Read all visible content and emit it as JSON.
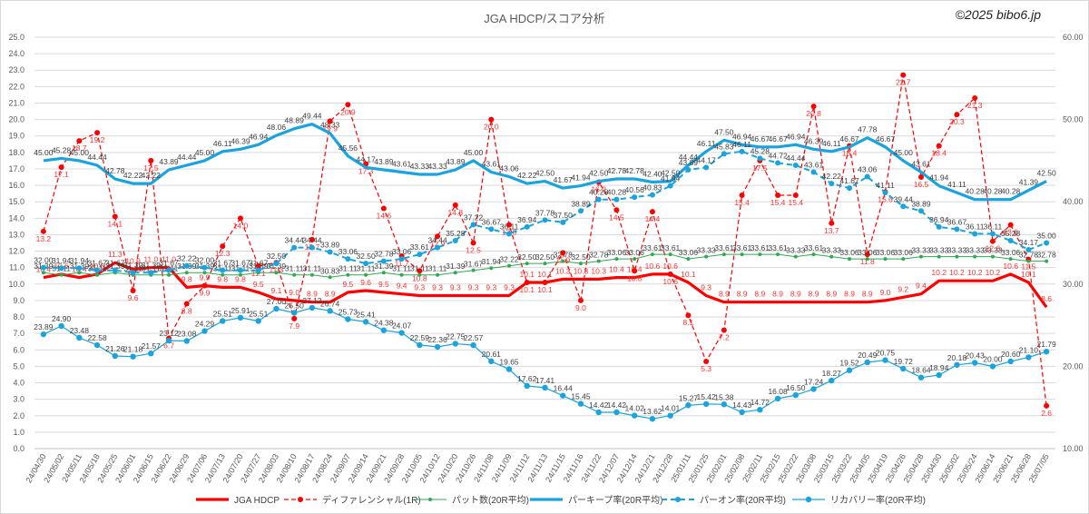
{
  "title": "JGA HDCP/スコア分析",
  "copyright": "©2025 bibo6.jp",
  "colors": {
    "hdcp": "#ff0000",
    "diff": "#ff0000",
    "putt": "#33a852",
    "par": "#1aa3dd",
    "gir": "#1aa3dd",
    "rec": "#1aa3dd",
    "grid": "#d9d9d9",
    "axis_text": "#595959"
  },
  "chart_data": {
    "type": "line",
    "y_left": {
      "min": 0,
      "max": 25,
      "step": 1
    },
    "y_right": {
      "min": 10,
      "max": 60,
      "step": 10
    },
    "grid": true,
    "legend_position": "bottom",
    "categories": [
      "24/04/30",
      "24/05/02",
      "24/05/11",
      "24/05/18",
      "24/05/25",
      "24/06/01",
      "24/06/15",
      "24/06/22",
      "24/06/29",
      "24/07/06",
      "24/07/13",
      "24/07/20",
      "24/07/27",
      "24/08/03",
      "24/08/10",
      "24/08/17",
      "24/08/24",
      "24/09/07",
      "24/09/14",
      "24/09/21",
      "24/09/28",
      "24/10/05",
      "24/10/12",
      "24/10/20",
      "24/10/26",
      "24/11/08",
      "24/11/09",
      "24/11/12",
      "24/11/13",
      "24/11/15",
      "24/11/16",
      "24/11/22",
      "24/12/07",
      "24/12/14",
      "24/12/21",
      "24/12/28",
      "25/01/11",
      "25/01/25",
      "25/02/01",
      "25/02/08",
      "25/02/11",
      "25/02/15",
      "25/02/22",
      "25/03/08",
      "25/03/15",
      "25/03/22",
      "25/04/05",
      "25/04/19",
      "25/04/26",
      "25/04/28",
      "25/04/30",
      "25/05/02",
      "25/05/24",
      "25/06/14",
      "25/06/21",
      "25/06/28",
      "25/07/05"
    ],
    "series": [
      {
        "name": "JGA HDCP",
        "axis": "left",
        "style": "line-thick",
        "values": [
          10.4,
          10.6,
          10.4,
          10.6,
          11.3,
          10.9,
          11.0,
          11.0,
          9.8,
          9.9,
          9.8,
          9.8,
          9.5,
          9.1,
          9.0,
          8.9,
          8.9,
          9.5,
          9.6,
          9.5,
          9.4,
          9.3,
          9.3,
          9.3,
          9.3,
          9.3,
          9.3,
          10.1,
          10.1,
          10.3,
          10.3,
          10.3,
          10.4,
          10.4,
          10.6,
          10.6,
          10.1,
          9.3,
          8.9,
          8.9,
          8.9,
          8.9,
          8.9,
          8.9,
          8.9,
          8.9,
          8.9,
          9.0,
          9.2,
          9.4,
          10.2,
          10.2,
          10.2,
          10.2,
          10.6,
          10.1,
          8.6
        ]
      },
      {
        "name": "ディファレンシャル(1R)",
        "axis": "left",
        "style": "dashed-marker",
        "values": [
          13.2,
          17.1,
          18.7,
          19.2,
          14.1,
          9.6,
          17.5,
          6.7,
          8.8,
          9.9,
          12.3,
          14.0,
          11.1,
          11.3,
          7.9,
          12.7,
          19.9,
          20.9,
          17.3,
          14.6,
          11.7,
          10.8,
          12.9,
          14.8,
          12.5,
          20.0,
          13.6,
          10.1,
          10.1,
          11.9,
          9.0,
          16.2,
          14.5,
          10.8,
          14.4,
          10.6,
          8.1,
          5.3,
          7.2,
          15.4,
          17.5,
          15.4,
          15.4,
          20.8,
          13.7,
          18.4,
          11.8,
          15.6,
          22.7,
          16.5,
          18.4,
          20.3,
          21.3,
          12.6,
          13.6,
          11.5,
          2.6
        ]
      },
      {
        "name": "パット数(20R平均)",
        "axis": "right",
        "style": "thin-marker",
        "values": [
          31.39,
          31.11,
          31.39,
          31.11,
          31.39,
          31.11,
          31.11,
          31.11,
          31.39,
          31.39,
          31.11,
          31.11,
          31.39,
          31.39,
          31.11,
          31.11,
          30.83,
          31.11,
          31.11,
          31.39,
          31.11,
          31.11,
          31.11,
          31.39,
          31.67,
          31.94,
          32.22,
          32.5,
          32.5,
          32.78,
          32.5,
          32.78,
          33.06,
          33.06,
          33.61,
          33.61,
          33.06,
          33.33,
          33.61,
          33.61,
          33.61,
          33.61,
          33.33,
          33.61,
          33.33,
          33.06,
          33.06,
          33.06,
          33.06,
          33.33,
          33.33,
          33.33,
          33.33,
          33.33,
          33.06,
          32.78,
          32.78
        ]
      },
      {
        "name": "パーキープ率(20R平均)",
        "axis": "right",
        "style": "line-thick",
        "values": [
          45.0,
          45.28,
          45.0,
          44.44,
          42.78,
          42.22,
          42.22,
          43.89,
          44.44,
          45.0,
          46.11,
          46.39,
          46.94,
          48.06,
          48.89,
          49.44,
          48.33,
          45.56,
          44.17,
          43.89,
          43.61,
          43.33,
          43.33,
          43.89,
          45.0,
          43.61,
          43.06,
          42.22,
          42.5,
          41.67,
          41.94,
          42.5,
          42.78,
          42.78,
          42.4,
          42.5,
          44.44,
          46.11,
          47.5,
          46.94,
          46.67,
          46.67,
          46.94,
          46.39,
          46.11,
          46.67,
          47.78,
          46.67,
          45.0,
          43.61,
          41.94,
          41.11,
          40.28,
          40.28,
          40.28,
          41.39,
          42.5
        ]
      },
      {
        "name": "パーオン率(20R平均)",
        "axis": "right",
        "style": "dashed-marker",
        "values": [
          32.0,
          31.94,
          31.94,
          31.67,
          31.67,
          31.39,
          31.39,
          31.67,
          32.22,
          32.0,
          31.67,
          31.67,
          31.67,
          32.5,
          34.44,
          34.44,
          33.89,
          33.06,
          32.5,
          32.78,
          33.06,
          33.61,
          34.44,
          35.28,
          37.22,
          36.67,
          36.11,
          36.94,
          37.78,
          37.5,
          38.89,
          40.28,
          40.28,
          40.56,
          40.83,
          41.94,
          43.89,
          44.17,
          45.83,
          46.11,
          45.28,
          44.72,
          44.44,
          43.61,
          42.22,
          41.67,
          43.06,
          41.11,
          39.44,
          38.89,
          36.94,
          36.67,
          36.11,
          36.11,
          35.28,
          34.17,
          35.0
        ]
      },
      {
        "name": "リカバリー率(20R平均)",
        "axis": "right",
        "style": "thin-marker",
        "values": [
          23.89,
          24.9,
          23.48,
          22.58,
          21.26,
          21.18,
          21.57,
          23.12,
          23.08,
          24.29,
          25.51,
          25.91,
          25.51,
          27.0,
          26.5,
          27.12,
          26.74,
          25.73,
          25.41,
          24.38,
          24.07,
          22.59,
          22.36,
          22.75,
          22.57,
          20.61,
          19.65,
          17.62,
          17.41,
          16.44,
          15.45,
          14.42,
          14.42,
          14.02,
          13.62,
          14.01,
          15.27,
          15.42,
          15.38,
          14.43,
          14.72,
          16.08,
          16.5,
          17.24,
          18.27,
          19.52,
          20.49,
          20.75,
          19.72,
          18.64,
          18.94,
          20.18,
          20.43,
          20.0,
          20.6,
          21.1,
          21.79
        ]
      }
    ]
  }
}
